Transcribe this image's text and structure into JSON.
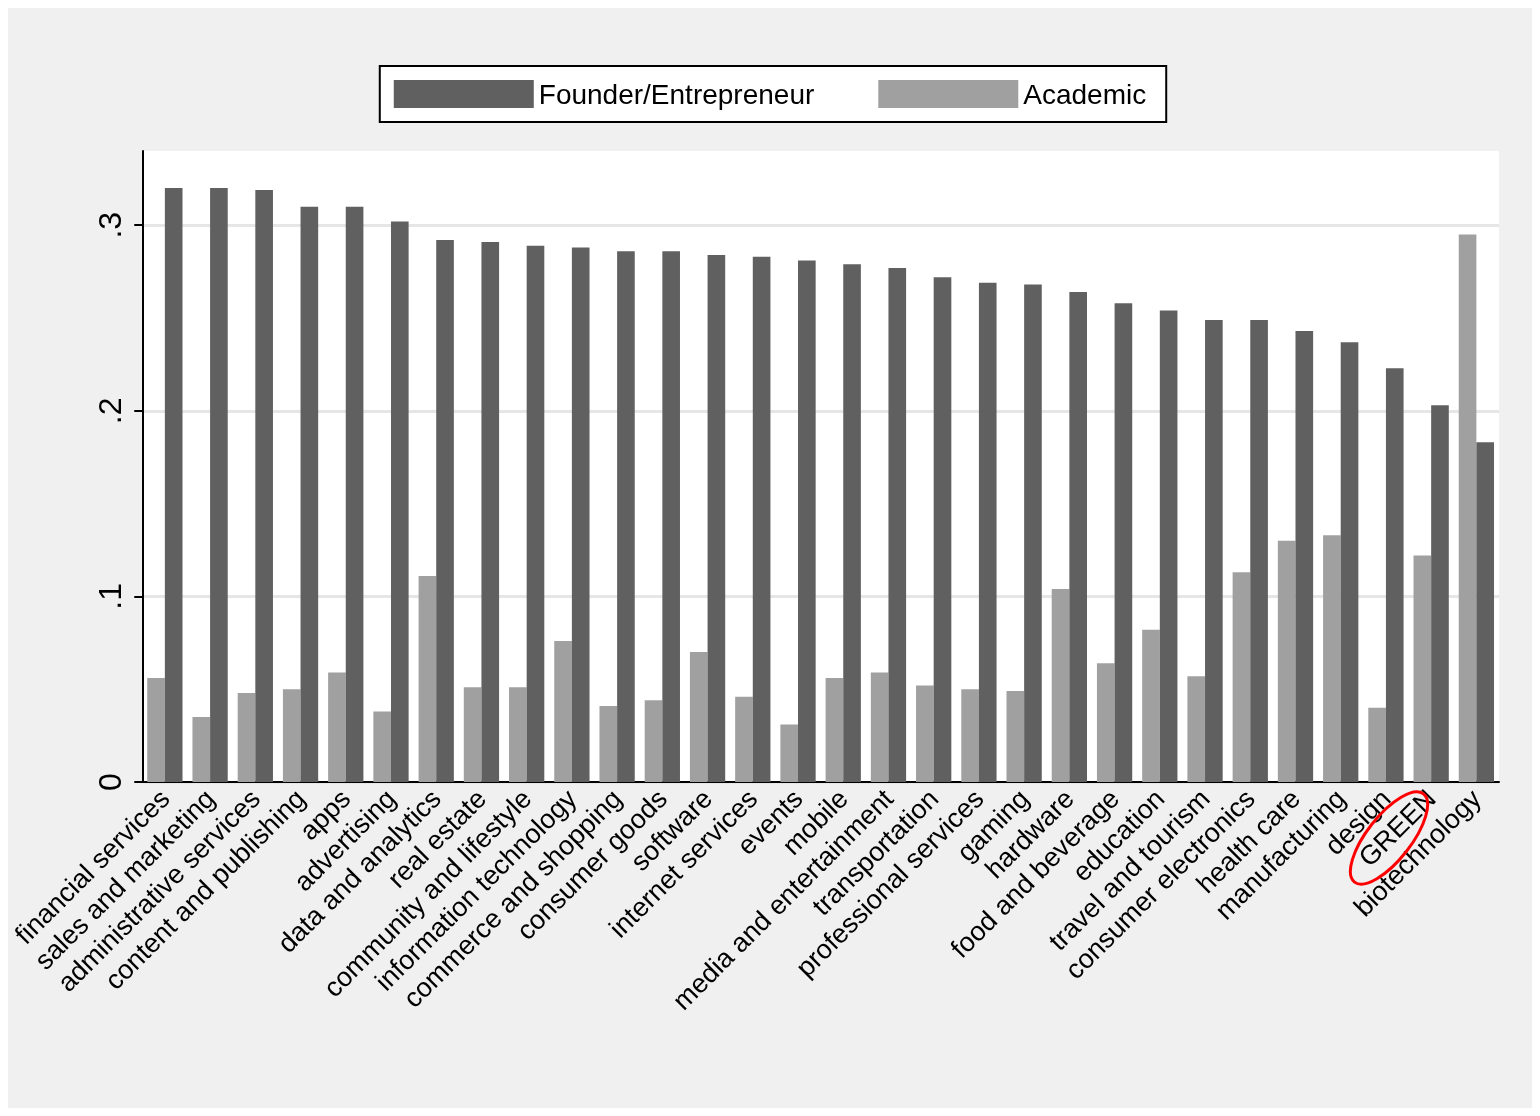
{
  "chart_data": {
    "type": "bar",
    "categories": [
      "financial services",
      "sales and marketing",
      "administrative services",
      "content and publishing",
      "apps",
      "advertising",
      "data and analytics",
      "real estate",
      "community and lifestyle",
      "information technology",
      "commerce and shopping",
      "consumer goods",
      "software",
      "internet services",
      "events",
      "mobile",
      "media and entertainment",
      "transportation",
      "professional services",
      "gaming",
      "hardware",
      "food and beverage",
      "education",
      "travel and tourism",
      "consumer electronics",
      "health care",
      "manufacturing",
      "design",
      "GREEN",
      "biotechnology"
    ],
    "series": [
      {
        "name": "Academic",
        "color": "#a0a0a0",
        "values": [
          0.056,
          0.035,
          0.048,
          0.05,
          0.059,
          0.038,
          0.111,
          0.051,
          0.051,
          0.076,
          0.041,
          0.044,
          0.07,
          0.046,
          0.031,
          0.056,
          0.059,
          0.052,
          0.05,
          0.049,
          0.104,
          0.064,
          0.082,
          0.057,
          0.113,
          0.13,
          0.133,
          0.04,
          0.122,
          0.295
        ]
      },
      {
        "name": "Founder/Entrepreneur",
        "color": "#606060",
        "values": [
          0.32,
          0.32,
          0.319,
          0.31,
          0.31,
          0.302,
          0.292,
          0.291,
          0.289,
          0.288,
          0.286,
          0.286,
          0.284,
          0.283,
          0.281,
          0.279,
          0.277,
          0.272,
          0.269,
          0.268,
          0.264,
          0.258,
          0.254,
          0.249,
          0.249,
          0.243,
          0.237,
          0.223,
          0.203,
          0.183
        ]
      }
    ],
    "ylim": [
      0,
      0.34
    ],
    "yticks": [
      {
        "value": 0,
        "label": "0"
      },
      {
        "value": 0.1,
        "label": ".1"
      },
      {
        "value": 0.2,
        "label": ".2"
      },
      {
        "value": 0.3,
        "label": ".3"
      }
    ],
    "grid": "y",
    "legend": "top"
  }
}
